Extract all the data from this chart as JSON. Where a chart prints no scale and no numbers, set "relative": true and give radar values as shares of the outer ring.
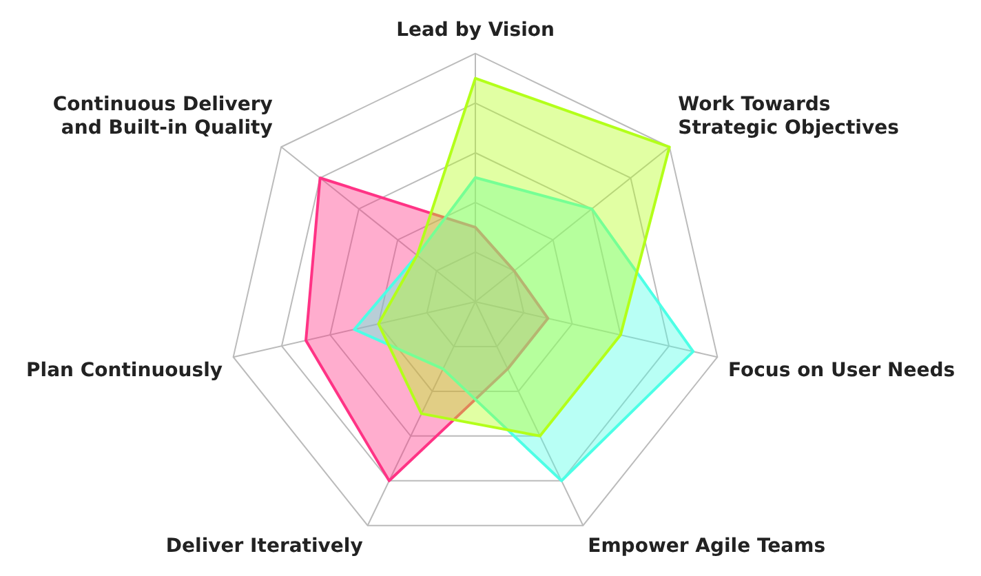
{
  "chart_data": {
    "type": "radar",
    "relative": true,
    "grid": true,
    "legend": false,
    "marker": "none",
    "categories": [
      "Lead by Vision",
      "Work Towards\nStrategic Objectives",
      "Focus on User Needs",
      "Empower Agile Teams",
      "Deliver Iteratively",
      "Plan Continuously",
      "Continuous Delivery\nand Built-in Quality"
    ],
    "series": [
      {
        "color": "#b3ff1a",
        "values": [
          0.9,
          1.0,
          0.6,
          0.6,
          0.5,
          0.4,
          0.3
        ]
      },
      {
        "color": "#4dffe6",
        "values": [
          0.5,
          0.6,
          0.9,
          0.8,
          0.3,
          0.5,
          0.3
        ]
      },
      {
        "color": "#ff3385",
        "values": [
          0.3,
          0.2,
          0.3,
          0.3,
          0.8,
          0.7,
          0.8
        ]
      }
    ]
  }
}
